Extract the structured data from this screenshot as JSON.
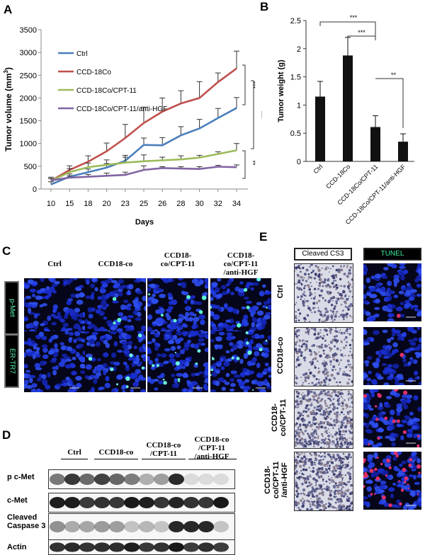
{
  "panels": {
    "A": "A",
    "B": "B",
    "C": "C",
    "D": "D",
    "E": "E"
  },
  "chart_data": [
    {
      "type": "line",
      "xlabel": "Days",
      "ylabel": "Tumor volume (mm",
      "ylabel_sup": "3",
      "ylabel_close": ")",
      "x": [
        "10",
        "15",
        "18",
        "20",
        "23",
        "25",
        "26",
        "28",
        "30",
        "32",
        "34"
      ],
      "ylim": [
        0,
        3500
      ],
      "yticks": [
        "0",
        "500",
        "1000",
        "1500",
        "2000",
        "2500",
        "3000",
        "3500"
      ],
      "legend_position": "top-left",
      "series": [
        {
          "name": "Ctrl",
          "color": "#4a7ebb",
          "values": [
            100,
            270,
            370,
            470,
            620,
            970,
            960,
            1180,
            1330,
            1560,
            1780
          ],
          "errors": [
            60,
            60,
            70,
            90,
            120,
            150,
            170,
            190,
            200,
            210,
            230
          ]
        },
        {
          "name": "CCD-18Co",
          "color": "#c0504d",
          "values": [
            180,
            420,
            600,
            830,
            1120,
            1450,
            1700,
            1880,
            2000,
            2350,
            2650
          ],
          "errors": [
            80,
            90,
            130,
            180,
            300,
            350,
            300,
            280,
            360,
            200,
            380
          ]
        },
        {
          "name": "CCD-18Co/CPT-11",
          "color": "#9bbb59",
          "values": [
            180,
            370,
            480,
            530,
            580,
            610,
            630,
            650,
            690,
            770,
            850
          ],
          "errors": [
            50,
            80,
            90,
            110,
            120,
            140,
            70,
            80,
            50,
            50,
            150
          ]
        },
        {
          "name": "CCD-18Co/CPT-11/anti-HGF",
          "color": "#8064a2",
          "values": [
            190,
            250,
            270,
            290,
            310,
            420,
            460,
            450,
            440,
            490,
            480
          ],
          "errors": [
            40,
            40,
            50,
            60,
            60,
            90,
            30,
            40,
            50,
            30,
            50
          ]
        }
      ],
      "annotations": [
        "***",
        "***",
        "**"
      ]
    },
    {
      "type": "bar",
      "ylabel": "Tumor weight (g)",
      "categories": [
        "Ctrl",
        "CCD-18Co",
        "CCD-18Co/CPT-11",
        "CCD-18Co/CPT-11/anti-HGF"
      ],
      "values": [
        1.15,
        1.88,
        0.61,
        0.35
      ],
      "errors": [
        0.27,
        0.32,
        0.2,
        0.14
      ],
      "ylim": [
        0,
        2.5
      ],
      "yticks": [
        "0",
        "0.5",
        "1",
        "1.5",
        "2",
        "2.5"
      ],
      "annotations": [
        "***",
        "***",
        "**"
      ]
    }
  ],
  "panelC": {
    "columns": [
      "Ctrl",
      "CCD18-co",
      "CCD18-co/CPT-11",
      "CCD18-co/CPT-11/anti-HGF"
    ],
    "col_lines": [
      [
        "Ctrl"
      ],
      [
        "CCD18-co"
      ],
      [
        "CCD18-",
        "co/CPT-11"
      ],
      [
        "CCD18-",
        "co/CPT-11",
        "/anti-HGF"
      ]
    ],
    "rows": [
      "p-Met",
      "ER-TR7"
    ]
  },
  "panelD": {
    "groups": [
      [
        "Ctrl"
      ],
      [
        "CCD18-co"
      ],
      [
        "CCD18-co",
        "/CPT-11"
      ],
      [
        "CCD18-co",
        "/CPT-11",
        "/anti-HGF"
      ]
    ],
    "rows": [
      [
        "p c-Met"
      ],
      [
        "c-Met"
      ],
      [
        "Cleaved",
        "Caspase 3"
      ],
      [
        "Actin"
      ]
    ]
  },
  "panelE": {
    "headers": [
      "Cleaved CS3",
      "TUNEL"
    ],
    "rows": [
      [
        "Ctrl"
      ],
      [
        "CCD18-co"
      ],
      [
        "CCD18-",
        "co/CPT-11"
      ],
      [
        "CCD18-",
        "co/CPT-11",
        "/anti-HGF"
      ]
    ]
  }
}
